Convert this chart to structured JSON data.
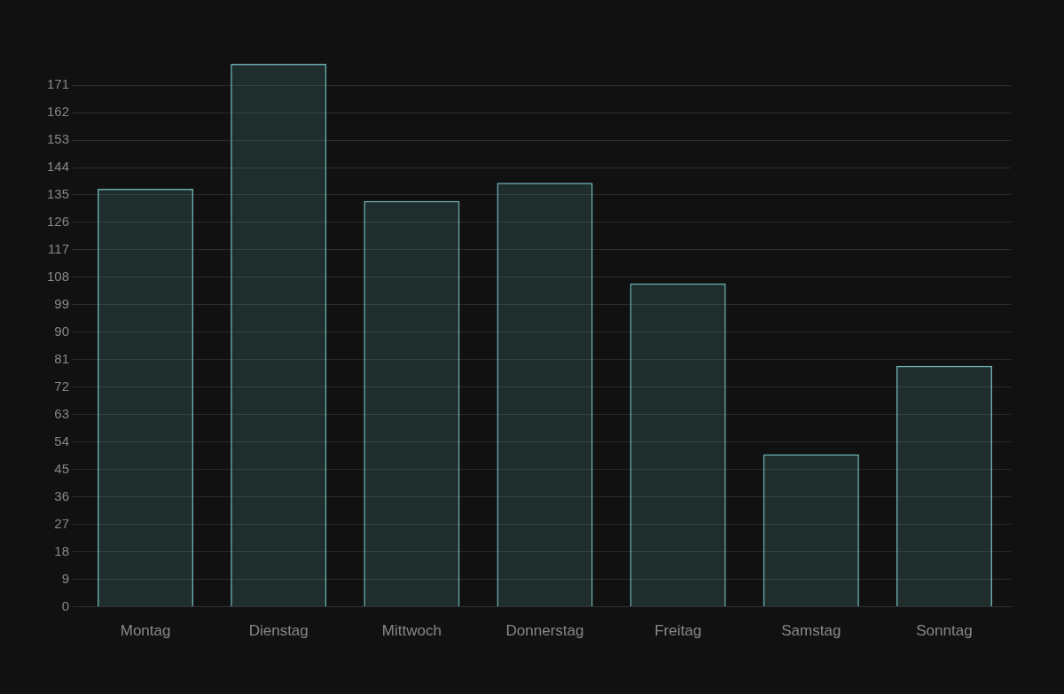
{
  "chart_data": {
    "type": "bar",
    "categories": [
      "Montag",
      "Dienstag",
      "Mittwoch",
      "Donnerstag",
      "Freitag",
      "Samstag",
      "Sonntag"
    ],
    "values": [
      137,
      178,
      133,
      139,
      106,
      50,
      79
    ],
    "color": "#6cb0b0",
    "ylim": [
      0,
      178
    ],
    "yticks": [
      0,
      9,
      18,
      27,
      36,
      45,
      54,
      63,
      72,
      81,
      90,
      99,
      108,
      117,
      126,
      135,
      144,
      153,
      162,
      171
    ],
    "grid": "y",
    "legend": false
  }
}
